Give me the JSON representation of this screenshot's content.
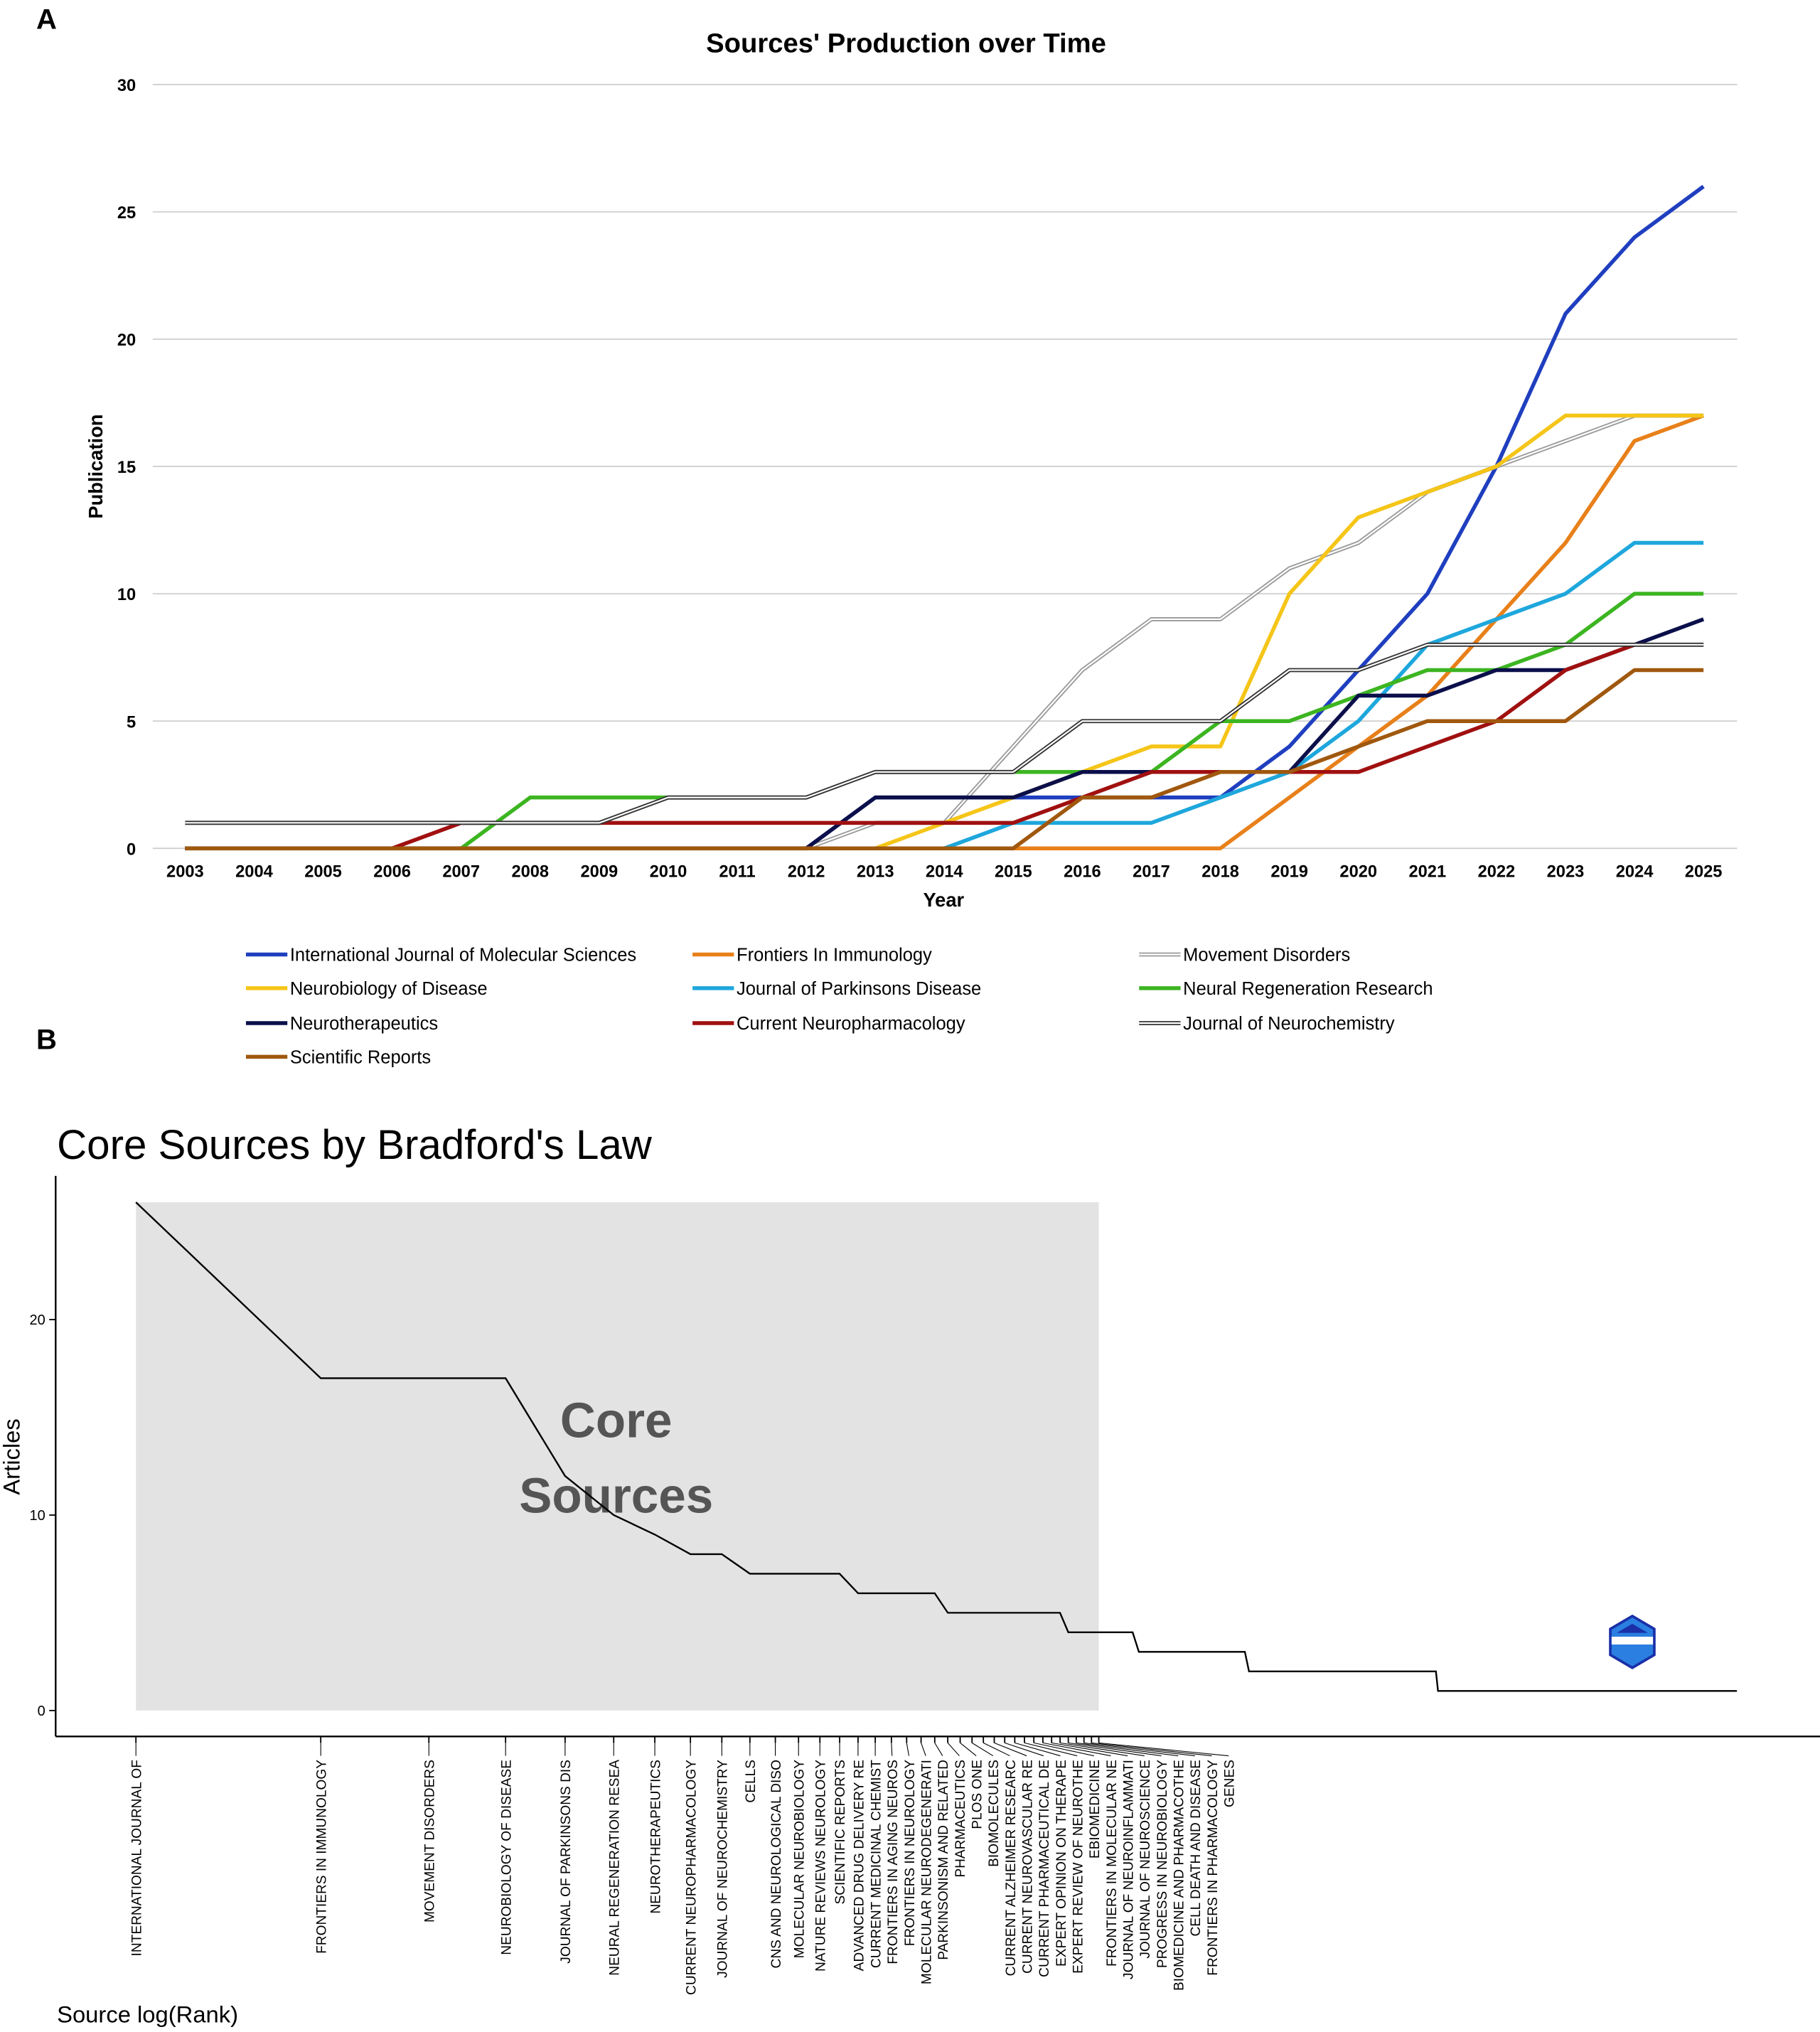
{
  "panels": {
    "a": "A",
    "b": "B"
  },
  "chart_data": [
    {
      "type": "line",
      "title": "Sources' Production over Time",
      "xlabel": "Year",
      "ylabel": "Publication",
      "ylim": [
        0,
        30
      ],
      "yticks": [
        0,
        5,
        10,
        15,
        20,
        25,
        30
      ],
      "grid": true,
      "legend_position": "bottom",
      "x": [
        2003,
        2004,
        2005,
        2006,
        2007,
        2008,
        2009,
        2010,
        2011,
        2012,
        2013,
        2014,
        2015,
        2016,
        2017,
        2018,
        2019,
        2020,
        2021,
        2022,
        2023,
        2024,
        2025
      ],
      "series": [
        {
          "name": "International Journal of Molecular Sciences",
          "color": "#1f3fbf",
          "values": [
            0,
            0,
            0,
            0,
            0,
            0,
            0,
            0,
            0,
            0,
            2,
            2,
            2,
            2,
            2,
            2,
            4,
            7,
            10,
            15,
            21,
            24,
            26
          ]
        },
        {
          "name": "Frontiers In Immunology",
          "color": "#e8801a",
          "values": [
            0,
            0,
            0,
            0,
            0,
            0,
            0,
            0,
            0,
            0,
            0,
            0,
            0,
            0,
            0,
            0,
            2,
            4,
            6,
            9,
            12,
            16,
            17
          ]
        },
        {
          "name": "Movement Disorders",
          "color": "#9a9a9a",
          "double": true,
          "values": [
            0,
            0,
            0,
            0,
            0,
            0,
            0,
            0,
            0,
            0,
            1,
            1,
            4,
            7,
            9,
            9,
            11,
            12,
            14,
            15,
            16,
            17,
            17
          ]
        },
        {
          "name": "Neurobiology of Disease",
          "color": "#f5c518",
          "values": [
            0,
            0,
            0,
            0,
            0,
            0,
            0,
            0,
            0,
            0,
            0,
            1,
            2,
            3,
            4,
            4,
            10,
            13,
            14,
            15,
            17,
            17,
            17
          ]
        },
        {
          "name": "Journal of Parkinsons Disease",
          "color": "#1ea7dc",
          "values": [
            0,
            0,
            0,
            0,
            0,
            0,
            0,
            0,
            0,
            0,
            0,
            0,
            1,
            1,
            1,
            2,
            3,
            5,
            8,
            9,
            10,
            12,
            12
          ]
        },
        {
          "name": "Neural Regeneration Research",
          "color": "#3cb521",
          "values": [
            0,
            0,
            0,
            0,
            0,
            2,
            2,
            2,
            2,
            2,
            3,
            3,
            3,
            3,
            3,
            5,
            5,
            6,
            7,
            7,
            8,
            10,
            10
          ]
        },
        {
          "name": "Neurotherapeutics",
          "color": "#0b0f4a",
          "values": [
            0,
            0,
            0,
            0,
            0,
            0,
            0,
            0,
            0,
            0,
            2,
            2,
            2,
            3,
            3,
            3,
            3,
            6,
            6,
            7,
            7,
            8,
            9
          ]
        },
        {
          "name": "Current Neuropharmacology",
          "color": "#a01010",
          "values": [
            0,
            0,
            0,
            0,
            1,
            1,
            1,
            1,
            1,
            1,
            1,
            1,
            1,
            2,
            3,
            3,
            3,
            3,
            4,
            5,
            7,
            8,
            8
          ]
        },
        {
          "name": "Journal of Neurochemistry",
          "color": "#333333",
          "double": true,
          "values": [
            1,
            1,
            1,
            1,
            1,
            1,
            1,
            2,
            2,
            2,
            3,
            3,
            3,
            5,
            5,
            5,
            7,
            7,
            8,
            8,
            8,
            8,
            8
          ]
        },
        {
          "name": "Scientific Reports",
          "color": "#a0580e",
          "values": [
            0,
            0,
            0,
            0,
            0,
            0,
            0,
            0,
            0,
            0,
            0,
            0,
            0,
            2,
            2,
            3,
            3,
            4,
            5,
            5,
            5,
            7,
            7
          ]
        }
      ]
    },
    {
      "type": "line",
      "title": "Core Sources by Bradford's Law",
      "xlabel": "Source log(Rank)",
      "ylabel": "Articles",
      "yticks": [
        0,
        10,
        20
      ],
      "annotation": [
        "Core",
        "Sources"
      ],
      "core_zone_ranks": [
        1,
        37
      ],
      "logo": "BIBLIOMETRIX",
      "sources": [
        {
          "name": "INTERNATIONAL JOURNAL OF",
          "articles": 26
        },
        {
          "name": "FRONTIERS IN IMMUNOLOGY",
          "articles": 17
        },
        {
          "name": "MOVEMENT DISORDERS",
          "articles": 17
        },
        {
          "name": "NEUROBIOLOGY OF DISEASE",
          "articles": 17
        },
        {
          "name": "JOURNAL OF PARKINSONS DIS",
          "articles": 12
        },
        {
          "name": "NEURAL REGENERATION RESEA",
          "articles": 10
        },
        {
          "name": "NEUROTHERAPEUTICS",
          "articles": 9
        },
        {
          "name": "CURRENT NEUROPHARMACOLOGY",
          "articles": 8
        },
        {
          "name": "JOURNAL OF NEUROCHEMISTRY",
          "articles": 8
        },
        {
          "name": "CELLS",
          "articles": 7
        },
        {
          "name": "CNS AND NEUROLOGICAL DISO",
          "articles": 7
        },
        {
          "name": "MOLECULAR NEUROBIOLOGY",
          "articles": 7
        },
        {
          "name": "NATURE REVIEWS NEUROLOGY",
          "articles": 7
        },
        {
          "name": "SCIENTIFIC REPORTS",
          "articles": 7
        },
        {
          "name": "ADVANCED DRUG DELIVERY RE",
          "articles": 6
        },
        {
          "name": "CURRENT MEDICINAL CHEMIST",
          "articles": 6
        },
        {
          "name": "FRONTIERS IN AGING NEUROS",
          "articles": 6
        },
        {
          "name": "FRONTIERS IN NEUROLOGY",
          "articles": 6
        },
        {
          "name": "MOLECULAR NEURODEGENERATI",
          "articles": 6
        },
        {
          "name": "PARKINSONISM AND RELATED",
          "articles": 6
        },
        {
          "name": "PHARMACEUTICS",
          "articles": 5
        },
        {
          "name": "PLOS ONE",
          "articles": 5
        },
        {
          "name": "BIOMOLECULES",
          "articles": 5
        },
        {
          "name": "CURRENT ALZHEIMER RESEARC",
          "articles": 5
        },
        {
          "name": "CURRENT NEUROVASCULAR RE",
          "articles": 5
        },
        {
          "name": "CURRENT PHARMACEUTICAL DE",
          "articles": 5
        },
        {
          "name": "EXPERT OPINION ON THERAPE",
          "articles": 5
        },
        {
          "name": "EXPERT REVIEW OF NEUROTHE",
          "articles": 5
        },
        {
          "name": "EBIOMEDICINE",
          "articles": 5
        },
        {
          "name": "FRONTIERS IN MOLECULAR NE",
          "articles": 5
        },
        {
          "name": "JOURNAL OF NEUROINFLAMMATI",
          "articles": 5
        },
        {
          "name": "JOURNAL OF NEUROSCIENCE",
          "articles": 5
        },
        {
          "name": "PROGRESS IN NEUROBIOLOGY",
          "articles": 4
        },
        {
          "name": "BIOMEDICINE AND PHARMACOTHE",
          "articles": 4
        },
        {
          "name": "CELL DEATH AND DISEASE",
          "articles": 4
        },
        {
          "name": "FRONTIERS IN PHARMACOLOGY",
          "articles": 4
        },
        {
          "name": "GENES",
          "articles": 4
        }
      ],
      "tail_runs": [
        {
          "articles": 4,
          "from_rank": 38,
          "to_rank": 42
        },
        {
          "articles": 3,
          "from_rank": 43,
          "to_rank": 64
        },
        {
          "articles": 2,
          "from_rank": 65,
          "to_rank": 131
        },
        {
          "articles": 1,
          "from_rank": 132,
          "to_rank": 405
        }
      ]
    }
  ]
}
